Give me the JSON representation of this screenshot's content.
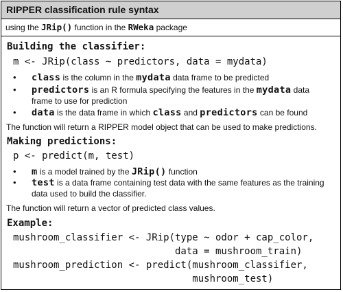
{
  "title": "RIPPER classification rule syntax",
  "subtitle": {
    "prefix": "using the ",
    "func": "JRip()",
    "middle": " function in the ",
    "pkg": "RWeka",
    "suffix": " package"
  },
  "building": {
    "heading": "Building the classifier:",
    "code": "m <- JRip(class ~ predictors, data = mydata)",
    "bullets": [
      {
        "term": "class",
        "a": " is the column in the ",
        "term2": "mydata",
        "b": " data frame to be predicted"
      },
      {
        "term": "predictors",
        "a": " is an R formula specifying the features in the ",
        "term2": "mydata",
        "b": " data",
        "line2": "frame to use for prediction"
      },
      {
        "term": "data",
        "a": " is the data frame in which ",
        "term2": "class",
        "b": " and ",
        "term3": "predictors",
        "c": " can be found"
      }
    ],
    "note": "The function will return a RIPPER model object that can be used to make predictions."
  },
  "predicting": {
    "heading": "Making predictions:",
    "code": "p <- predict(m, test)",
    "bullets": [
      {
        "term": "m",
        "a": " is a model trained by the ",
        "term2": "JRip()",
        "b": "  function"
      },
      {
        "term": "test",
        "a": " is a data frame containing test data with the same features as the training",
        "line2": "data used to build the classifier."
      }
    ],
    "note": "The function will return a vector of predicted class values."
  },
  "example": {
    "heading": "Example:",
    "lines": [
      "mushroom_classifier <- JRip(type ~ odor + cap_color,",
      "                            data = mushroom_train)",
      "mushroom_prediction <- predict(mushroom_classifier,",
      "                               mushroom_test)"
    ]
  }
}
